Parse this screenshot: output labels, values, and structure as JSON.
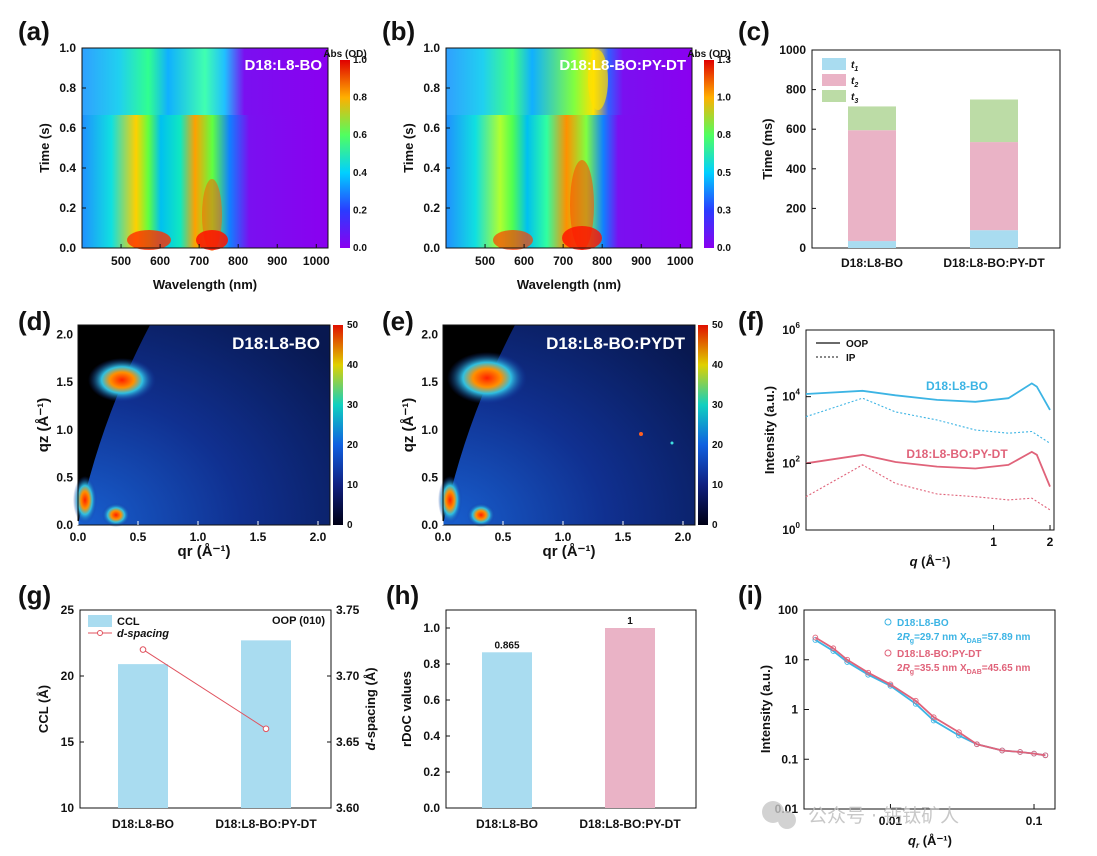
{
  "panels": {
    "a": {
      "label": "(a)",
      "sample": "D18:L8-BO",
      "xlabel": "Wavelength (nm)",
      "ylabel": "Time (s)",
      "cbar_title": "Abs (OD)",
      "xticks": [
        "500",
        "600",
        "700",
        "800",
        "900",
        "1000"
      ],
      "yticks": [
        "0.0",
        "0.2",
        "0.4",
        "0.6",
        "0.8",
        "1.0"
      ],
      "cbar_ticks": [
        "0.0",
        "0.2",
        "0.4",
        "0.6",
        "0.8",
        "1.0"
      ]
    },
    "b": {
      "label": "(b)",
      "sample": "D18:L8-BO:PY-DT",
      "xlabel": "Wavelength (nm)",
      "ylabel": "Time (s)",
      "cbar_title": "Abs (OD)",
      "xticks": [
        "500",
        "600",
        "700",
        "800",
        "900",
        "1000"
      ],
      "yticks": [
        "0.0",
        "0.2",
        "0.4",
        "0.6",
        "0.8",
        "1.0"
      ],
      "cbar_ticks": [
        "0.0",
        "0.3",
        "0.5",
        "0.8",
        "1.0",
        "1.3"
      ]
    },
    "c": {
      "label": "(c)",
      "ylabel": "Time (ms)",
      "yticks": [
        "0",
        "200",
        "400",
        "600",
        "800",
        "1000"
      ],
      "legend": [
        "t1",
        "t2",
        "t3"
      ],
      "categories": [
        "D18:L8-BO",
        "D18:L8-BO:PY-DT"
      ]
    },
    "d": {
      "label": "(d)",
      "sample": "D18:L8-BO",
      "xlabel": "qr (Å⁻¹)",
      "ylabel": "qz (Å⁻¹)",
      "xticks": [
        "0.0",
        "0.5",
        "1.0",
        "1.5",
        "2.0"
      ],
      "yticks": [
        "0.0",
        "0.5",
        "1.0",
        "1.5",
        "2.0"
      ],
      "cbar_ticks": [
        "0",
        "10",
        "20",
        "30",
        "40",
        "50"
      ]
    },
    "e": {
      "label": "(e)",
      "sample": "D18:L8-BO:PYDT",
      "xlabel": "qr (Å⁻¹)",
      "ylabel": "qz (Å⁻¹)",
      "xticks": [
        "0.0",
        "0.5",
        "1.0",
        "1.5",
        "2.0"
      ],
      "yticks": [
        "0.0",
        "0.5",
        "1.0",
        "1.5",
        "2.0"
      ],
      "cbar_ticks": [
        "0",
        "10",
        "20",
        "30",
        "40",
        "50"
      ]
    },
    "f": {
      "label": "(f)",
      "xlabel": "q (Å⁻¹)",
      "ylabel": "Intensity (a.u.)",
      "legend_oop": "OOP",
      "legend_ip": "IP",
      "series_labels": [
        "D18:L8-BO",
        "D18:L8-BO:PY-DT"
      ],
      "xticks": [
        "1",
        "2"
      ]
    },
    "g": {
      "label": "(g)",
      "ylabel_left": "CCL (Å)",
      "ylabel_right": "d-spacing (Å)",
      "annotation": "OOP (010)",
      "legend_bar": "CCL",
      "legend_line": "d-spacing",
      "yticks_left": [
        "10",
        "15",
        "20",
        "25"
      ],
      "yticks_right": [
        "3.60",
        "3.65",
        "3.70",
        "3.75"
      ],
      "categories": [
        "D18:L8-BO",
        "D18:L8-BO:PY-DT"
      ]
    },
    "h": {
      "label": "(h)",
      "ylabel": "rDoC values",
      "yticks": [
        "0.0",
        "0.2",
        "0.4",
        "0.6",
        "0.8",
        "1.0"
      ],
      "categories": [
        "D18:L8-BO",
        "D18:L8-BO:PY-DT"
      ],
      "bar_labels": [
        "0.865",
        "1"
      ]
    },
    "i": {
      "label": "(i)",
      "xlabel": "q (Å⁻¹)",
      "ylabel": "Intensity (a.u.)",
      "xticks": [
        "0.01",
        "0.1"
      ],
      "yticks": [
        "0.01",
        "0.1",
        "1",
        "10",
        "100"
      ],
      "legend1": "D18:L8-BO",
      "legend1b": "2Rg=29.7 nm XDAB=57.89 nm",
      "legend2": "D18:L8-BO:PY-DT",
      "legend2b": "2Rg=35.5 nm XDAB=45.65 nm"
    }
  },
  "watermark": "公众号 · 钙钛矿人",
  "colors": {
    "blue": "#3cb4e4",
    "pink": "#e0637a",
    "bar_blue": "#a9dcf0",
    "bar_pink": "#eab3c6",
    "bar_green": "#bcdca6",
    "line_red": "#e0525e"
  },
  "chart_data": [
    {
      "type": "heatmap",
      "panel": "a",
      "title": "D18:L8-BO",
      "xlabel": "Wavelength (nm)",
      "ylabel": "Time (s)",
      "xlim": [
        400,
        1030
      ],
      "ylim": [
        0,
        1.0
      ],
      "clim": [
        0,
        1.0
      ],
      "features": [
        {
          "peak_nm": 600,
          "t_end_s": 0.67
        },
        {
          "peak_nm": 735,
          "t_end_s": 0.67
        },
        {
          "peak_nm": 590,
          "t_start_s": 0.67
        },
        {
          "peak_nm": 760,
          "t_start_s": 0.67
        }
      ]
    },
    {
      "type": "heatmap",
      "panel": "b",
      "title": "D18:L8-BO:PY-DT",
      "xlabel": "Wavelength (nm)",
      "ylabel": "Time (s)",
      "xlim": [
        400,
        1030
      ],
      "ylim": [
        0,
        1.0
      ],
      "clim": [
        0,
        1.3
      ],
      "features": [
        {
          "peak_nm": 600,
          "t_end_s": 0.67
        },
        {
          "peak_nm": 745,
          "t_end_s": 0.67
        },
        {
          "peak_nm": 590,
          "t_start_s": 0.67
        },
        {
          "peak_nm": 790,
          "t_start_s": 0.67
        }
      ]
    },
    {
      "type": "bar",
      "panel": "c",
      "ylabel": "Time (ms)",
      "ylim": [
        0,
        1000
      ],
      "categories": [
        "D18:L8-BO",
        "D18:L8-BO:PY-DT"
      ],
      "series": [
        {
          "name": "t1",
          "values": [
            35,
            90
          ]
        },
        {
          "name": "t2",
          "values": [
            560,
            445
          ]
        },
        {
          "name": "t3",
          "values": [
            120,
            215
          ]
        }
      ]
    },
    {
      "type": "heatmap",
      "panel": "d",
      "title": "D18:L8-BO",
      "xlabel": "qr (Å⁻¹)",
      "ylabel": "qz (Å⁻¹)",
      "xlim": [
        0,
        2.1
      ],
      "ylim": [
        0,
        2.1
      ],
      "clim": [
        0,
        50
      ],
      "spots": [
        {
          "qr": 0.35,
          "qz": 1.65
        },
        {
          "qr": 0.03,
          "qz": 0.3
        },
        {
          "qr": 0.3,
          "qz": 0.05
        }
      ]
    },
    {
      "type": "heatmap",
      "panel": "e",
      "title": "D18:L8-BO:PYDT",
      "xlabel": "qr (Å⁻¹)",
      "ylabel": "qz (Å⁻¹)",
      "xlim": [
        0,
        2.1
      ],
      "ylim": [
        0,
        2.1
      ],
      "clim": [
        0,
        50
      ],
      "spots": [
        {
          "qr": 0.35,
          "qz": 1.65
        },
        {
          "qr": 0.03,
          "qz": 0.3
        },
        {
          "qr": 0.3,
          "qz": 0.05
        }
      ]
    },
    {
      "type": "line",
      "panel": "f",
      "xscale": "log",
      "yscale": "log",
      "xlim": [
        0.1,
        2.1
      ],
      "ylim": [
        1,
        1000000
      ],
      "xlabel": "q (Å⁻¹)",
      "ylabel": "Intensity (a.u.)",
      "series": [
        {
          "name": "D18:L8-BO",
          "style": "OOP",
          "x": [
            0.1,
            0.2,
            0.3,
            0.5,
            0.8,
            1.2,
            1.6,
            1.7,
            2.0
          ],
          "y": [
            12000,
            15000,
            11000,
            8000,
            7000,
            9000,
            25000,
            20000,
            4000
          ]
        },
        {
          "name": "D18:L8-BO",
          "style": "IP",
          "x": [
            0.1,
            0.2,
            0.3,
            0.5,
            0.8,
            1.2,
            1.6,
            2.0
          ],
          "y": [
            2500,
            9000,
            3500,
            2000,
            1000,
            800,
            900,
            400
          ]
        },
        {
          "name": "D18:L8-BO:PY-DT",
          "style": "OOP",
          "x": [
            0.1,
            0.2,
            0.3,
            0.5,
            0.8,
            1.2,
            1.6,
            1.7,
            2.0
          ],
          "y": [
            100,
            180,
            110,
            80,
            70,
            90,
            220,
            180,
            20
          ]
        },
        {
          "name": "D18:L8-BO:PY-DT",
          "style": "IP",
          "x": [
            0.1,
            0.2,
            0.3,
            0.5,
            0.8,
            1.2,
            1.6,
            2.0
          ],
          "y": [
            10,
            90,
            25,
            12,
            10,
            8,
            9,
            4
          ]
        }
      ]
    },
    {
      "type": "bar",
      "panel": "g",
      "ylabel": "CCL (Å)",
      "ylim": [
        10,
        25
      ],
      "categories": [
        "D18:L8-BO",
        "D18:L8-BO:PY-DT"
      ],
      "series": [
        {
          "name": "CCL",
          "values": [
            20.9,
            22.7
          ]
        }
      ],
      "secondary": {
        "name": "d-spacing",
        "ylabel": "d-spacing (Å)",
        "ylim": [
          3.6,
          3.75
        ],
        "values": [
          3.72,
          3.66
        ]
      }
    },
    {
      "type": "bar",
      "panel": "h",
      "ylabel": "rDoC values",
      "ylim": [
        0,
        1.1
      ],
      "categories": [
        "D18:L8-BO",
        "D18:L8-BO:PY-DT"
      ],
      "values": [
        0.865,
        1
      ]
    },
    {
      "type": "scatter",
      "panel": "i",
      "xscale": "log",
      "yscale": "log",
      "xlim": [
        0.0025,
        0.14
      ],
      "ylim": [
        0.01,
        100
      ],
      "xlabel": "q (Å⁻¹)",
      "ylabel": "Intensity (a.u.)",
      "series": [
        {
          "name": "D18:L8-BO",
          "x": [
            0.003,
            0.004,
            0.005,
            0.007,
            0.01,
            0.015,
            0.02,
            0.03,
            0.04,
            0.06,
            0.08,
            0.1,
            0.12
          ],
          "y": [
            25,
            15,
            9,
            5,
            3,
            1.3,
            0.6,
            0.3,
            0.2,
            0.15,
            0.14,
            0.13,
            0.12
          ]
        },
        {
          "name": "D18:L8-BO:PY-DT",
          "x": [
            0.003,
            0.004,
            0.005,
            0.007,
            0.01,
            0.015,
            0.02,
            0.03,
            0.04,
            0.06,
            0.08,
            0.1,
            0.12
          ],
          "y": [
            28,
            17,
            10,
            5.5,
            3.2,
            1.5,
            0.7,
            0.35,
            0.2,
            0.15,
            0.14,
            0.13,
            0.12
          ]
        }
      ]
    }
  ]
}
